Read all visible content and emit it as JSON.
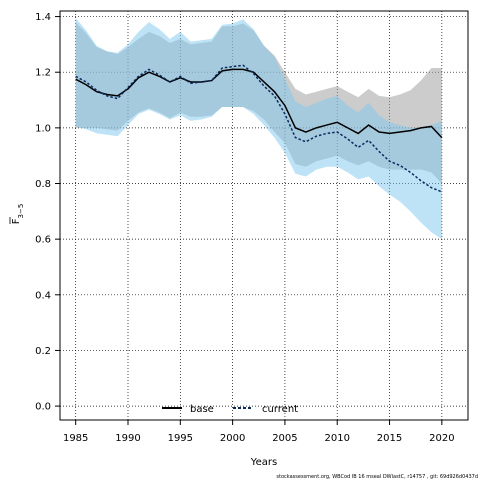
{
  "chart_data": {
    "type": "line",
    "title": "",
    "xlabel": "Years",
    "ylabel": "F",
    "ylabel_sub": "3−5",
    "xlim": [
      1983.5,
      2022.5
    ],
    "ylim": [
      -0.05,
      1.42
    ],
    "xticks": [
      1985,
      1990,
      1995,
      2000,
      2005,
      2010,
      2015,
      2020
    ],
    "yticks": [
      0.0,
      0.2,
      0.4,
      0.6,
      0.8,
      1.0,
      1.2,
      1.4
    ],
    "grid": true,
    "legend_position": "bottom-center",
    "x": [
      1985,
      1986,
      1987,
      1988,
      1989,
      1990,
      1991,
      1992,
      1993,
      1994,
      1995,
      1996,
      1997,
      1998,
      1999,
      2000,
      2001,
      2002,
      2003,
      2004,
      2005,
      2006,
      2007,
      2008,
      2009,
      2010,
      2011,
      2012,
      2013,
      2014,
      2015,
      2016,
      2017,
      2018,
      2019,
      2020
    ],
    "series": [
      {
        "name": "base",
        "color": "#000000",
        "line_style": "solid",
        "band_color": "#999999",
        "values": [
          1.175,
          1.155,
          1.13,
          1.12,
          1.115,
          1.14,
          1.18,
          1.2,
          1.185,
          1.165,
          1.18,
          1.165,
          1.165,
          1.17,
          1.205,
          1.21,
          1.21,
          1.2,
          1.165,
          1.13,
          1.08,
          1.0,
          0.985,
          1.0,
          1.01,
          1.02,
          1.0,
          0.98,
          1.01,
          0.985,
          0.98,
          0.985,
          0.99,
          1.0,
          1.005,
          0.965
        ],
        "lower": [
          1.0,
          1.0,
          1.0,
          0.995,
          0.99,
          1.025,
          1.055,
          1.07,
          1.055,
          1.035,
          1.055,
          1.04,
          1.04,
          1.045,
          1.075,
          1.075,
          1.075,
          1.06,
          1.03,
          0.985,
          0.945,
          0.87,
          0.86,
          0.88,
          0.89,
          0.9,
          0.88,
          0.865,
          0.88,
          0.86,
          0.85,
          0.85,
          0.85,
          0.85,
          0.84,
          0.8
        ],
        "upper": [
          1.38,
          1.34,
          1.29,
          1.275,
          1.265,
          1.29,
          1.32,
          1.345,
          1.33,
          1.305,
          1.32,
          1.3,
          1.305,
          1.31,
          1.365,
          1.365,
          1.375,
          1.35,
          1.295,
          1.26,
          1.2,
          1.14,
          1.12,
          1.13,
          1.14,
          1.15,
          1.13,
          1.11,
          1.14,
          1.115,
          1.11,
          1.12,
          1.135,
          1.17,
          1.215,
          1.215
        ]
      },
      {
        "name": "current",
        "color": "#0a2a5e",
        "line_style": "dashed",
        "band_color": "#7fc8ee",
        "values": [
          1.185,
          1.165,
          1.135,
          1.115,
          1.105,
          1.145,
          1.185,
          1.21,
          1.19,
          1.165,
          1.185,
          1.16,
          1.165,
          1.17,
          1.215,
          1.22,
          1.225,
          1.195,
          1.15,
          1.115,
          1.05,
          0.965,
          0.95,
          0.97,
          0.98,
          0.985,
          0.96,
          0.93,
          0.955,
          0.915,
          0.88,
          0.865,
          0.84,
          0.81,
          0.785,
          0.77
        ],
        "lower": [
          1.005,
          0.995,
          0.98,
          0.975,
          0.97,
          1.01,
          1.05,
          1.065,
          1.05,
          1.03,
          1.045,
          1.025,
          1.03,
          1.04,
          1.075,
          1.075,
          1.075,
          1.05,
          1.01,
          0.965,
          0.91,
          0.835,
          0.825,
          0.85,
          0.86,
          0.86,
          0.84,
          0.815,
          0.825,
          0.79,
          0.76,
          0.735,
          0.7,
          0.66,
          0.625,
          0.6
        ],
        "upper": [
          1.395,
          1.35,
          1.295,
          1.275,
          1.27,
          1.3,
          1.345,
          1.38,
          1.355,
          1.32,
          1.345,
          1.31,
          1.315,
          1.32,
          1.37,
          1.375,
          1.39,
          1.355,
          1.295,
          1.255,
          1.175,
          1.095,
          1.075,
          1.09,
          1.105,
          1.115,
          1.08,
          1.055,
          1.09,
          1.045,
          1.02,
          1.01,
          1.0,
          1.0,
          1.01,
          1.025
        ]
      }
    ],
    "footnote": "stockassessment.org, WBCod IB 16 mseal DWlastC, r14757 , git: 69d926d0437d"
  }
}
